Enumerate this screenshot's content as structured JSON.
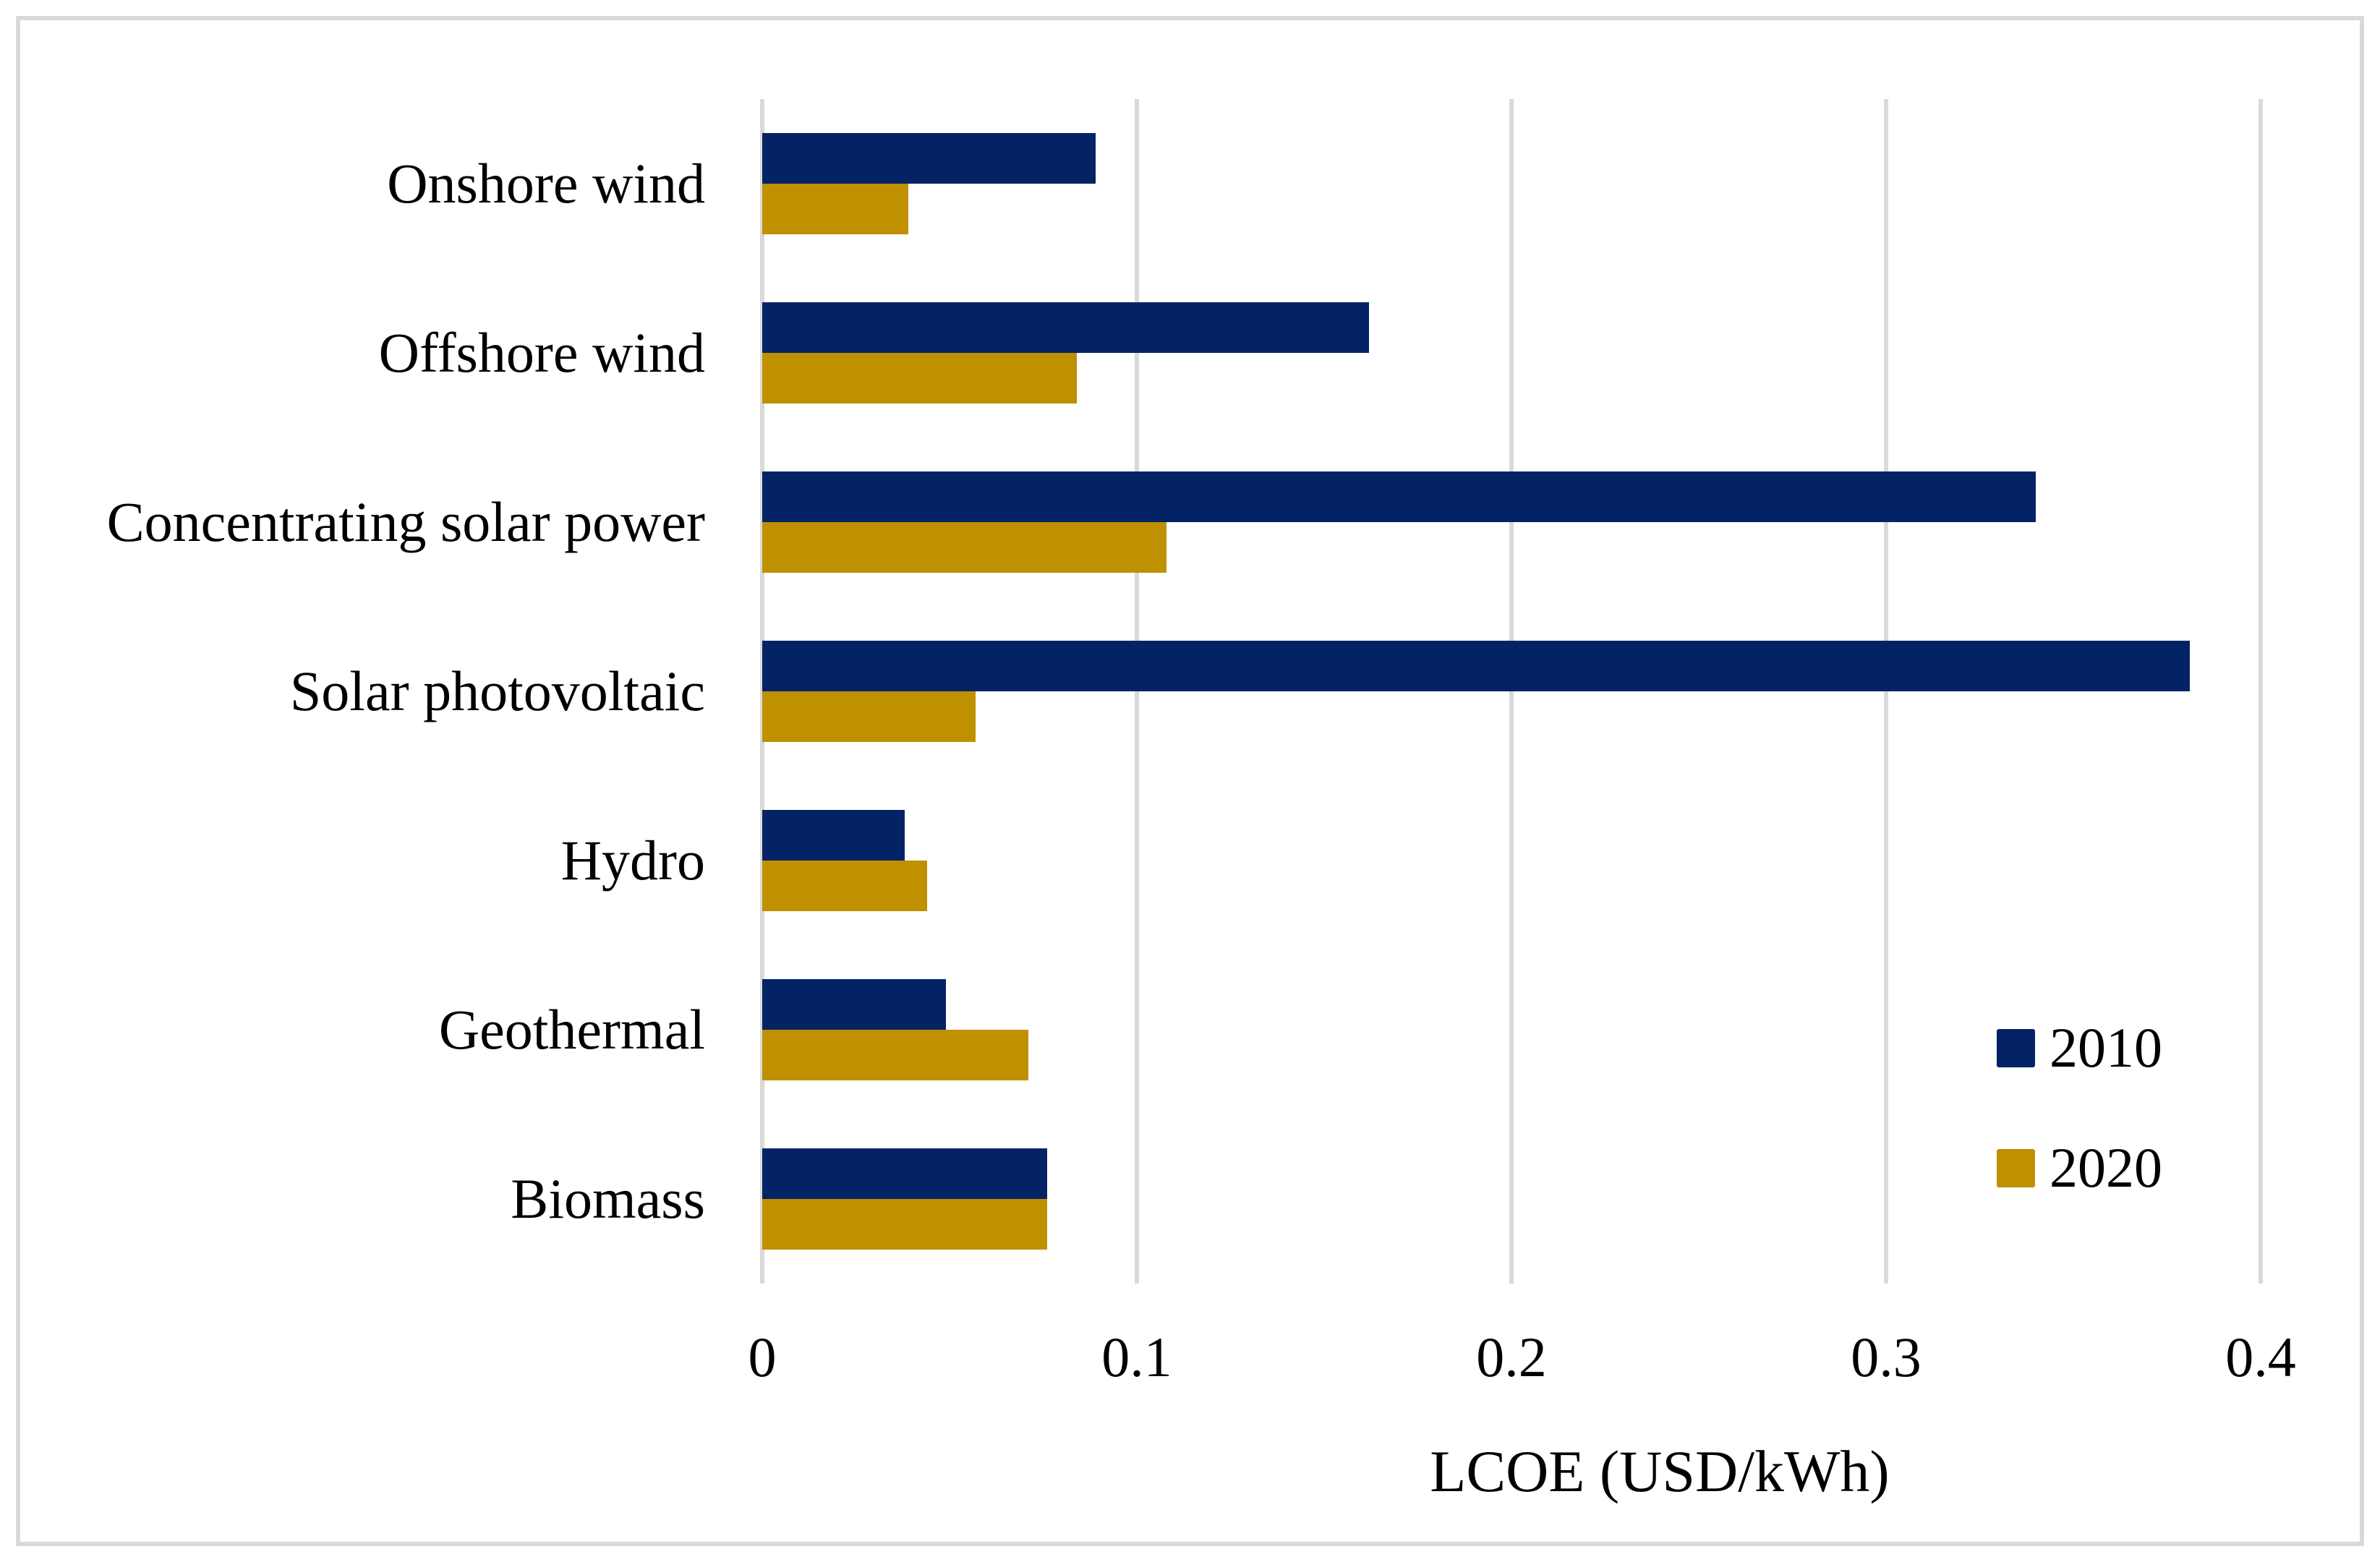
{
  "figure": {
    "background": "#ffffff",
    "frame_color": "#d9d9d9"
  },
  "chart_data": {
    "type": "bar",
    "orientation": "horizontal",
    "title": "",
    "xlabel": "LCOE (USD/kWh)",
    "ylabel": "",
    "categories": [
      "Onshore wind",
      "Offshore wind",
      "Concentrating solar power",
      "Solar photovoltaic",
      "Hydro",
      "Geothermal",
      "Biomass"
    ],
    "series": [
      {
        "name": "2010",
        "color": "#042365",
        "values": [
          0.089,
          0.162,
          0.34,
          0.381,
          0.038,
          0.049,
          0.076
        ]
      },
      {
        "name": "2020",
        "color": "#bf9000",
        "values": [
          0.039,
          0.084,
          0.108,
          0.057,
          0.044,
          0.071,
          0.076
        ]
      }
    ],
    "xlim": [
      0,
      0.4
    ],
    "x_ticks": [
      "0",
      "0.1",
      "0.2",
      "0.3",
      "0.4"
    ],
    "x_tick_values": [
      0,
      0.1,
      0.2,
      0.3,
      0.4
    ],
    "grid": "vertical",
    "gridline_color": "#d9d9d9",
    "legend_position": "right-middle"
  },
  "legend": {
    "items": [
      {
        "label": "2010",
        "color": "#042365"
      },
      {
        "label": "2020",
        "color": "#bf9000"
      }
    ]
  }
}
